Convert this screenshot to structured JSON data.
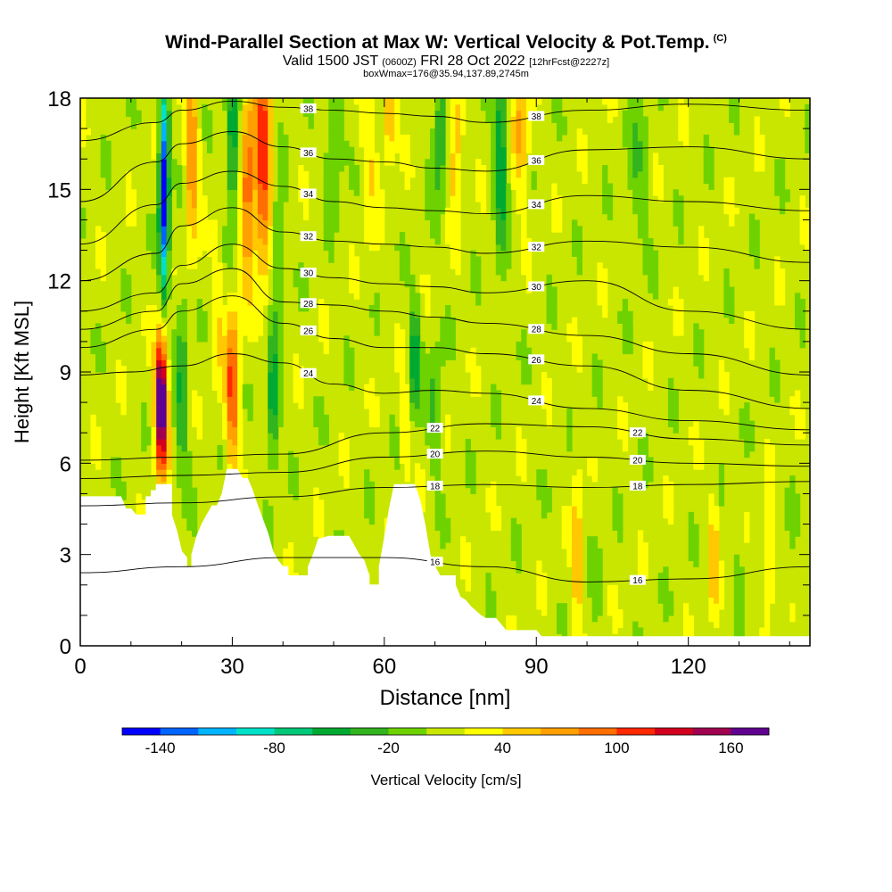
{
  "header": {
    "title": "Wind-Parallel Section at Max W: Vertical Velocity & Pot.Temp.",
    "copyright": "(C)",
    "valid_prefix": "Valid 1500 JST",
    "valid_utc": "(0600Z)",
    "valid_date": "FRI 28 Oct 2022",
    "forecast_info": "[12hrFcst@2227z]",
    "box_info": "boxWmax=176@35.94,137.89,2745m"
  },
  "chart_data": {
    "type": "heatmap",
    "title": "Wind-Parallel Section at Max W: Vertical Velocity & Pot.Temp.",
    "xlabel": "Distance [nm]",
    "ylabel": "Height [Kft MSL]",
    "xlim": [
      0,
      144
    ],
    "ylim": [
      0,
      18
    ],
    "x_ticks": [
      0,
      30,
      60,
      90,
      120
    ],
    "y_ticks": [
      0,
      3,
      6,
      9,
      12,
      15,
      18
    ],
    "colorbar": {
      "label": "Vertical Velocity [cm/s]",
      "tick_labels": [
        "-140",
        "-80",
        "-20",
        "40",
        "100",
        "160"
      ],
      "tick_values": [
        -140,
        -80,
        -20,
        40,
        100,
        160
      ],
      "min": -160,
      "max": 180,
      "bin_width": 20,
      "colors": [
        "#0000ff",
        "#0064ff",
        "#00b4ff",
        "#00e1c8",
        "#00c878",
        "#00aa32",
        "#32b41e",
        "#6ed200",
        "#c8e600",
        "#ffff00",
        "#ffc800",
        "#ffa000",
        "#ff6e00",
        "#ff2800",
        "#d2001e",
        "#a00050",
        "#600090"
      ]
    },
    "terrain_kft": [
      [
        0,
        4.9
      ],
      [
        8,
        4.9
      ],
      [
        9,
        4.5
      ],
      [
        10,
        4.5
      ],
      [
        11,
        4.3
      ],
      [
        13,
        4.3
      ],
      [
        13,
        4.9
      ],
      [
        14,
        4.9
      ],
      [
        14,
        5.1
      ],
      [
        15,
        5.1
      ],
      [
        15,
        5.3
      ],
      [
        18,
        5.3
      ],
      [
        18,
        4.3
      ],
      [
        19,
        3.8
      ],
      [
        20,
        3.1
      ],
      [
        21,
        2.9
      ],
      [
        21,
        2.6
      ],
      [
        22,
        2.6
      ],
      [
        22,
        3.0
      ],
      [
        23,
        3.6
      ],
      [
        24,
        4.0
      ],
      [
        25,
        4.3
      ],
      [
        26,
        4.6
      ],
      [
        27,
        4.6
      ],
      [
        28,
        5.0
      ],
      [
        29,
        5.8
      ],
      [
        31,
        5.8
      ],
      [
        32,
        5.5
      ],
      [
        33,
        5.5
      ],
      [
        34,
        5.1
      ],
      [
        35,
        4.6
      ],
      [
        37,
        3.7
      ],
      [
        38,
        3.1
      ],
      [
        39,
        2.8
      ],
      [
        40,
        2.6
      ],
      [
        41,
        2.6
      ],
      [
        41,
        2.3
      ],
      [
        45,
        2.3
      ],
      [
        45,
        2.6
      ],
      [
        46,
        3.0
      ],
      [
        47,
        3.5
      ],
      [
        49,
        3.6
      ],
      [
        53,
        3.6
      ],
      [
        54,
        3.3
      ],
      [
        55,
        3.0
      ],
      [
        56,
        2.8
      ],
      [
        57,
        2.3
      ],
      [
        57,
        2.0
      ],
      [
        59,
        2.0
      ],
      [
        59,
        2.6
      ],
      [
        60,
        3.5
      ],
      [
        61,
        4.5
      ],
      [
        62,
        5.3
      ],
      [
        66,
        5.3
      ],
      [
        67,
        4.8
      ],
      [
        68,
        4.0
      ],
      [
        69,
        3.0
      ],
      [
        70,
        2.6
      ],
      [
        71,
        2.3
      ],
      [
        74,
        2.3
      ],
      [
        74,
        2.0
      ],
      [
        75,
        1.6
      ],
      [
        76,
        1.5
      ],
      [
        77,
        1.3
      ],
      [
        79,
        1.0
      ],
      [
        80,
        0.9
      ],
      [
        82,
        0.9
      ],
      [
        83,
        0.7
      ],
      [
        84,
        0.5
      ],
      [
        90,
        0.5
      ],
      [
        91,
        0.3
      ],
      [
        144,
        0.3
      ]
    ],
    "series": [
      {
        "name": "16",
        "values": [
          [
            0,
            2.4
          ],
          [
            20,
            2.6
          ],
          [
            40,
            2.9
          ],
          [
            60,
            2.9
          ],
          [
            80,
            2.6
          ],
          [
            100,
            2.1
          ],
          [
            120,
            2.2
          ],
          [
            144,
            2.6
          ]
        ]
      },
      {
        "name": "18",
        "values": [
          [
            0,
            4.6
          ],
          [
            20,
            4.7
          ],
          [
            40,
            4.9
          ],
          [
            60,
            5.2
          ],
          [
            80,
            5.3
          ],
          [
            100,
            5.2
          ],
          [
            120,
            5.3
          ],
          [
            144,
            5.4
          ]
        ]
      },
      {
        "name": "20",
        "values": [
          [
            0,
            5.5
          ],
          [
            20,
            5.6
          ],
          [
            40,
            5.7
          ],
          [
            60,
            6.2
          ],
          [
            80,
            6.4
          ],
          [
            100,
            6.2
          ],
          [
            120,
            6.0
          ],
          [
            144,
            5.9
          ]
        ]
      },
      {
        "name": "22",
        "values": [
          [
            0,
            6.1
          ],
          [
            20,
            6.2
          ],
          [
            40,
            6.3
          ],
          [
            60,
            7.0
          ],
          [
            80,
            7.3
          ],
          [
            100,
            7.2
          ],
          [
            120,
            6.8
          ],
          [
            144,
            6.6
          ]
        ]
      },
      {
        "name": "24",
        "values": [
          [
            0,
            8.9
          ],
          [
            10,
            9.0
          ],
          [
            20,
            9.2
          ],
          [
            30,
            9.6
          ],
          [
            40,
            9.3
          ],
          [
            50,
            8.6
          ],
          [
            60,
            8.3
          ],
          [
            70,
            8.4
          ],
          [
            80,
            8.3
          ],
          [
            100,
            7.8
          ],
          [
            120,
            7.4
          ],
          [
            144,
            7.1
          ]
        ]
      },
      {
        "name": "26",
        "values": [
          [
            0,
            9.8
          ],
          [
            15,
            10.4
          ],
          [
            20,
            11.0
          ],
          [
            30,
            11.5
          ],
          [
            40,
            10.6
          ],
          [
            50,
            10.1
          ],
          [
            60,
            9.8
          ],
          [
            70,
            9.8
          ],
          [
            80,
            9.6
          ],
          [
            100,
            9.2
          ],
          [
            120,
            8.4
          ],
          [
            144,
            7.8
          ]
        ]
      },
      {
        "name": "28",
        "values": [
          [
            0,
            10.4
          ],
          [
            15,
            11.0
          ],
          [
            20,
            11.9
          ],
          [
            30,
            12.4
          ],
          [
            40,
            11.3
          ],
          [
            50,
            11.2
          ],
          [
            60,
            11.0
          ],
          [
            70,
            10.8
          ],
          [
            80,
            10.6
          ],
          [
            100,
            10.2
          ],
          [
            120,
            9.6
          ],
          [
            144,
            8.9
          ]
        ]
      },
      {
        "name": "30",
        "values": [
          [
            0,
            11.0
          ],
          [
            15,
            11.6
          ],
          [
            20,
            12.5
          ],
          [
            30,
            13.2
          ],
          [
            40,
            12.4
          ],
          [
            50,
            12.1
          ],
          [
            60,
            11.9
          ],
          [
            70,
            11.8
          ],
          [
            80,
            11.6
          ],
          [
            100,
            12.0
          ],
          [
            120,
            11.0
          ],
          [
            144,
            10.4
          ]
        ]
      },
      {
        "name": "32",
        "values": [
          [
            0,
            12.0
          ],
          [
            15,
            12.9
          ],
          [
            20,
            13.8
          ],
          [
            30,
            14.4
          ],
          [
            40,
            13.6
          ],
          [
            50,
            13.3
          ],
          [
            60,
            13.2
          ],
          [
            70,
            13.1
          ],
          [
            80,
            12.9
          ],
          [
            100,
            13.3
          ],
          [
            120,
            13.1
          ],
          [
            144,
            12.6
          ]
        ]
      },
      {
        "name": "34",
        "values": [
          [
            0,
            13.2
          ],
          [
            15,
            14.5
          ],
          [
            20,
            15.2
          ],
          [
            30,
            15.6
          ],
          [
            40,
            15.1
          ],
          [
            50,
            14.6
          ],
          [
            60,
            14.4
          ],
          [
            70,
            14.3
          ],
          [
            80,
            14.2
          ],
          [
            100,
            14.8
          ],
          [
            120,
            14.6
          ],
          [
            144,
            14.3
          ]
        ]
      },
      {
        "name": "36",
        "values": [
          [
            0,
            14.6
          ],
          [
            15,
            15.9
          ],
          [
            20,
            16.5
          ],
          [
            30,
            16.9
          ],
          [
            40,
            16.4
          ],
          [
            50,
            16.0
          ],
          [
            60,
            15.9
          ],
          [
            70,
            15.7
          ],
          [
            80,
            15.6
          ],
          [
            100,
            16.3
          ],
          [
            120,
            16.4
          ],
          [
            144,
            16.0
          ]
        ]
      },
      {
        "name": "38",
        "values": [
          [
            0,
            16.6
          ],
          [
            15,
            17.2
          ],
          [
            20,
            17.6
          ],
          [
            30,
            17.9
          ],
          [
            40,
            17.7
          ],
          [
            50,
            17.6
          ],
          [
            60,
            17.5
          ],
          [
            70,
            17.4
          ],
          [
            80,
            17.2
          ],
          [
            100,
            17.6
          ],
          [
            120,
            17.8
          ],
          [
            144,
            17.6
          ]
        ]
      }
    ]
  }
}
